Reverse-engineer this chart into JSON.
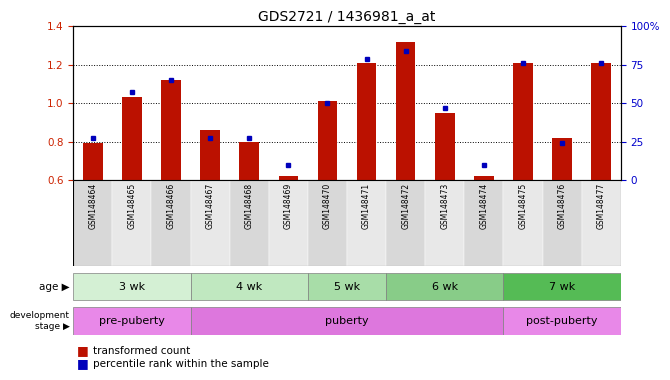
{
  "title": "GDS2721 / 1436981_a_at",
  "samples": [
    "GSM148464",
    "GSM148465",
    "GSM148466",
    "GSM148467",
    "GSM148468",
    "GSM148469",
    "GSM148470",
    "GSM148471",
    "GSM148472",
    "GSM148473",
    "GSM148474",
    "GSM148475",
    "GSM148476",
    "GSM148477"
  ],
  "transformed_count": [
    0.79,
    1.03,
    1.12,
    0.86,
    0.8,
    0.62,
    1.01,
    1.21,
    1.32,
    0.95,
    0.62,
    1.21,
    0.82,
    1.21
  ],
  "percentile_pct": [
    27,
    57,
    65,
    27,
    27,
    10,
    50,
    79,
    84,
    47,
    10,
    76,
    24,
    76
  ],
  "ylim_left": [
    0.6,
    1.4
  ],
  "ylim_right": [
    0,
    100
  ],
  "age_groups": [
    {
      "label": "3 wk",
      "start": 0,
      "end": 2,
      "color": "#d4f0d4"
    },
    {
      "label": "4 wk",
      "start": 3,
      "end": 5,
      "color": "#c0e8c0"
    },
    {
      "label": "5 wk",
      "start": 6,
      "end": 7,
      "color": "#a8dda8"
    },
    {
      "label": "6 wk",
      "start": 8,
      "end": 10,
      "color": "#88cc88"
    },
    {
      "label": "7 wk",
      "start": 11,
      "end": 13,
      "color": "#55bb55"
    }
  ],
  "dev_groups": [
    {
      "label": "pre-puberty",
      "start": 0,
      "end": 2,
      "color": "#e888e8"
    },
    {
      "label": "puberty",
      "start": 3,
      "end": 10,
      "color": "#dd77dd"
    },
    {
      "label": "post-puberty",
      "start": 11,
      "end": 13,
      "color": "#e888e8"
    }
  ],
  "bar_color": "#bb1100",
  "dot_color": "#0000bb",
  "tick_color_left": "#cc2200",
  "tick_color_right": "#0000cc",
  "sample_bg_even": "#d8d8d8",
  "sample_bg_odd": "#e8e8e8"
}
